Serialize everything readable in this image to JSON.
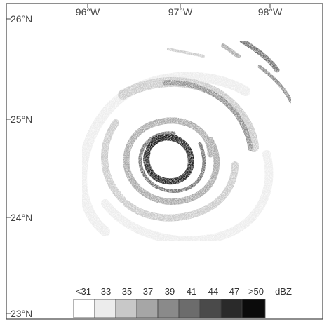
{
  "figure": {
    "longitude_ticks": [
      "96°W",
      "97°W",
      "98°W"
    ],
    "latitude_ticks": [
      "26°N",
      "25°N",
      "24°N",
      "23°N"
    ],
    "color_scale": {
      "unit": "dBZ",
      "classes": [
        {
          "label": "<31",
          "color": "#ffffff"
        },
        {
          "label": "33",
          "color": "#ececec"
        },
        {
          "label": "35",
          "color": "#c8c8c8"
        },
        {
          "label": "37",
          "color": "#a6a6a6"
        },
        {
          "label": "39",
          "color": "#8a8a8a"
        },
        {
          "label": "41",
          "color": "#6c6c6c"
        },
        {
          "label": "44",
          "color": "#4a4a4a"
        },
        {
          "label": "47",
          "color": "#2a2a2a"
        },
        {
          "label": ">50",
          "color": "#0b0b0b"
        }
      ]
    },
    "colors": {
      "frame": "#444444",
      "text": "#444444"
    }
  }
}
